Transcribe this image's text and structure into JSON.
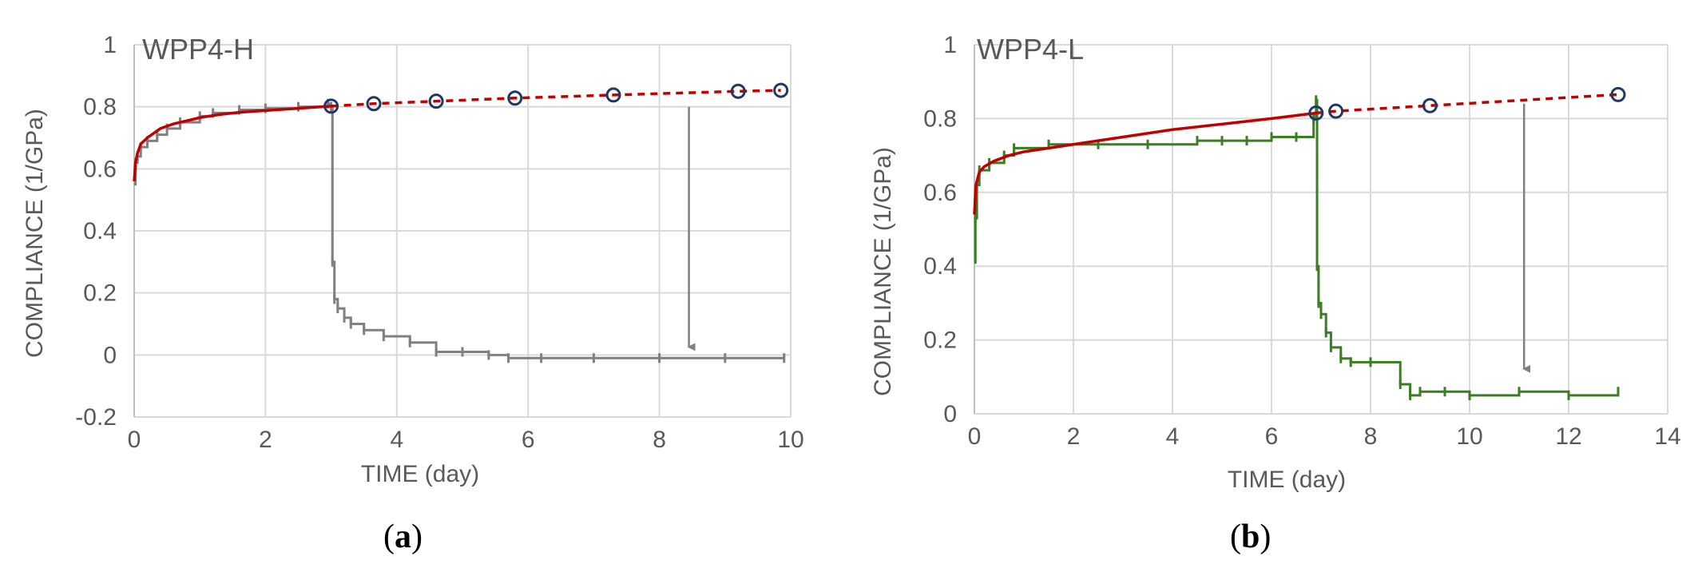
{
  "chart_data": [
    {
      "type": "line",
      "title": "WPP4-H",
      "caption_letter": "a",
      "xlabel": "TIME (day)",
      "ylabel": "COMPLIANCE (1/GPa)",
      "xlim": [
        0,
        10
      ],
      "ylim": [
        -0.2,
        1
      ],
      "xticks": [
        "0",
        "2",
        "4",
        "6",
        "8",
        "10"
      ],
      "yticks": [
        "1",
        "0.8",
        "0.6",
        "0.4",
        "0.2",
        "0",
        "-0.2"
      ],
      "grid": true,
      "colors": {
        "measured": "#808080",
        "fit": "#c00000",
        "markers": "#1f3864",
        "arrow": "#808080"
      },
      "series": [
        {
          "style": "step",
          "x": [
            0,
            0.02,
            0.05,
            0.1,
            0.2,
            0.35,
            0.5,
            0.7,
            1.0,
            1.2,
            1.6,
            2.0,
            2.5,
            2.95,
            3.0,
            3.02,
            3.05,
            3.1,
            3.2,
            3.3,
            3.5,
            3.8,
            4.2,
            4.6,
            5.0,
            5.4,
            5.7,
            6.2,
            7.0,
            8.0,
            9.0,
            9.9
          ],
          "y": [
            0.55,
            0.62,
            0.64,
            0.67,
            0.69,
            0.71,
            0.73,
            0.75,
            0.77,
            0.78,
            0.79,
            0.795,
            0.8,
            0.81,
            0.8,
            0.3,
            0.18,
            0.15,
            0.12,
            0.1,
            0.08,
            0.06,
            0.04,
            0.01,
            0.01,
            0.0,
            -0.01,
            -0.01,
            -0.01,
            -0.01,
            -0.01,
            -0.01
          ]
        },
        {
          "style": "solid",
          "x": [
            0,
            0.02,
            0.05,
            0.1,
            0.2,
            0.4,
            0.6,
            0.8,
            1.0,
            1.3,
            1.6,
            2.0,
            2.5,
            3.0
          ],
          "y": [
            0.56,
            0.62,
            0.65,
            0.68,
            0.7,
            0.73,
            0.745,
            0.755,
            0.765,
            0.775,
            0.782,
            0.788,
            0.795,
            0.802
          ]
        },
        {
          "style": "dashed",
          "x": [
            3.0,
            3.65,
            4.6,
            5.8,
            7.3,
            9.2,
            9.85
          ],
          "y": [
            0.802,
            0.81,
            0.818,
            0.828,
            0.838,
            0.85,
            0.853
          ]
        },
        {
          "style": "markers",
          "x": [
            3.0,
            3.65,
            4.6,
            5.8,
            7.3,
            9.2,
            9.85
          ],
          "y": [
            0.802,
            0.81,
            0.818,
            0.828,
            0.838,
            0.85,
            0.853
          ]
        }
      ],
      "annotation_arrow": {
        "x": 8.45,
        "y_from": 0.8,
        "y_to": 0.0
      }
    },
    {
      "type": "line",
      "title": "WPP4-L",
      "caption_letter": "b",
      "xlabel": "TIME (day)",
      "ylabel": "COMPLIANCE (1/GPa)",
      "xlim": [
        0,
        14
      ],
      "ylim": [
        0,
        1
      ],
      "xticks": [
        "0",
        "2",
        "4",
        "6",
        "8",
        "10",
        "12",
        "14"
      ],
      "yticks": [
        "1",
        "0.8",
        "0.6",
        "0.4",
        "0.2",
        "0"
      ],
      "grid": true,
      "colors": {
        "measured": "#3a7d22",
        "fit": "#c00000",
        "markers": "#1f3864",
        "arrow": "#808080"
      },
      "series": [
        {
          "style": "step",
          "x": [
            0,
            0.02,
            0.05,
            0.1,
            0.3,
            0.6,
            0.8,
            1.5,
            2.5,
            3.5,
            4.5,
            5.0,
            5.5,
            6.0,
            6.5,
            6.85,
            6.9,
            6.92,
            6.95,
            7.0,
            7.1,
            7.2,
            7.4,
            7.6,
            8.0,
            8.6,
            8.8,
            9.0,
            9.5,
            10.0,
            11.0,
            12.0,
            13.0
          ],
          "y": [
            0.41,
            0.53,
            0.62,
            0.66,
            0.68,
            0.7,
            0.72,
            0.73,
            0.73,
            0.73,
            0.74,
            0.74,
            0.74,
            0.75,
            0.75,
            0.8,
            0.85,
            0.4,
            0.3,
            0.27,
            0.22,
            0.18,
            0.15,
            0.14,
            0.14,
            0.08,
            0.05,
            0.06,
            0.06,
            0.05,
            0.06,
            0.05,
            0.06
          ]
        },
        {
          "style": "solid",
          "x": [
            0,
            0.03,
            0.1,
            0.2,
            0.4,
            0.7,
            1.0,
            1.5,
            2.0,
            3.0,
            4.0,
            5.0,
            6.0,
            6.9
          ],
          "y": [
            0.54,
            0.62,
            0.655,
            0.67,
            0.685,
            0.7,
            0.71,
            0.72,
            0.73,
            0.75,
            0.77,
            0.785,
            0.8,
            0.815
          ]
        },
        {
          "style": "dashed",
          "x": [
            6.9,
            7.3,
            9.2,
            13.0
          ],
          "y": [
            0.815,
            0.82,
            0.835,
            0.865
          ]
        },
        {
          "style": "markers",
          "x": [
            6.9,
            7.3,
            9.2,
            13.0
          ],
          "y": [
            0.815,
            0.82,
            0.835,
            0.865
          ]
        }
      ],
      "annotation_arrow": {
        "x": 11.1,
        "y_from": 0.84,
        "y_to": 0.1
      }
    }
  ]
}
